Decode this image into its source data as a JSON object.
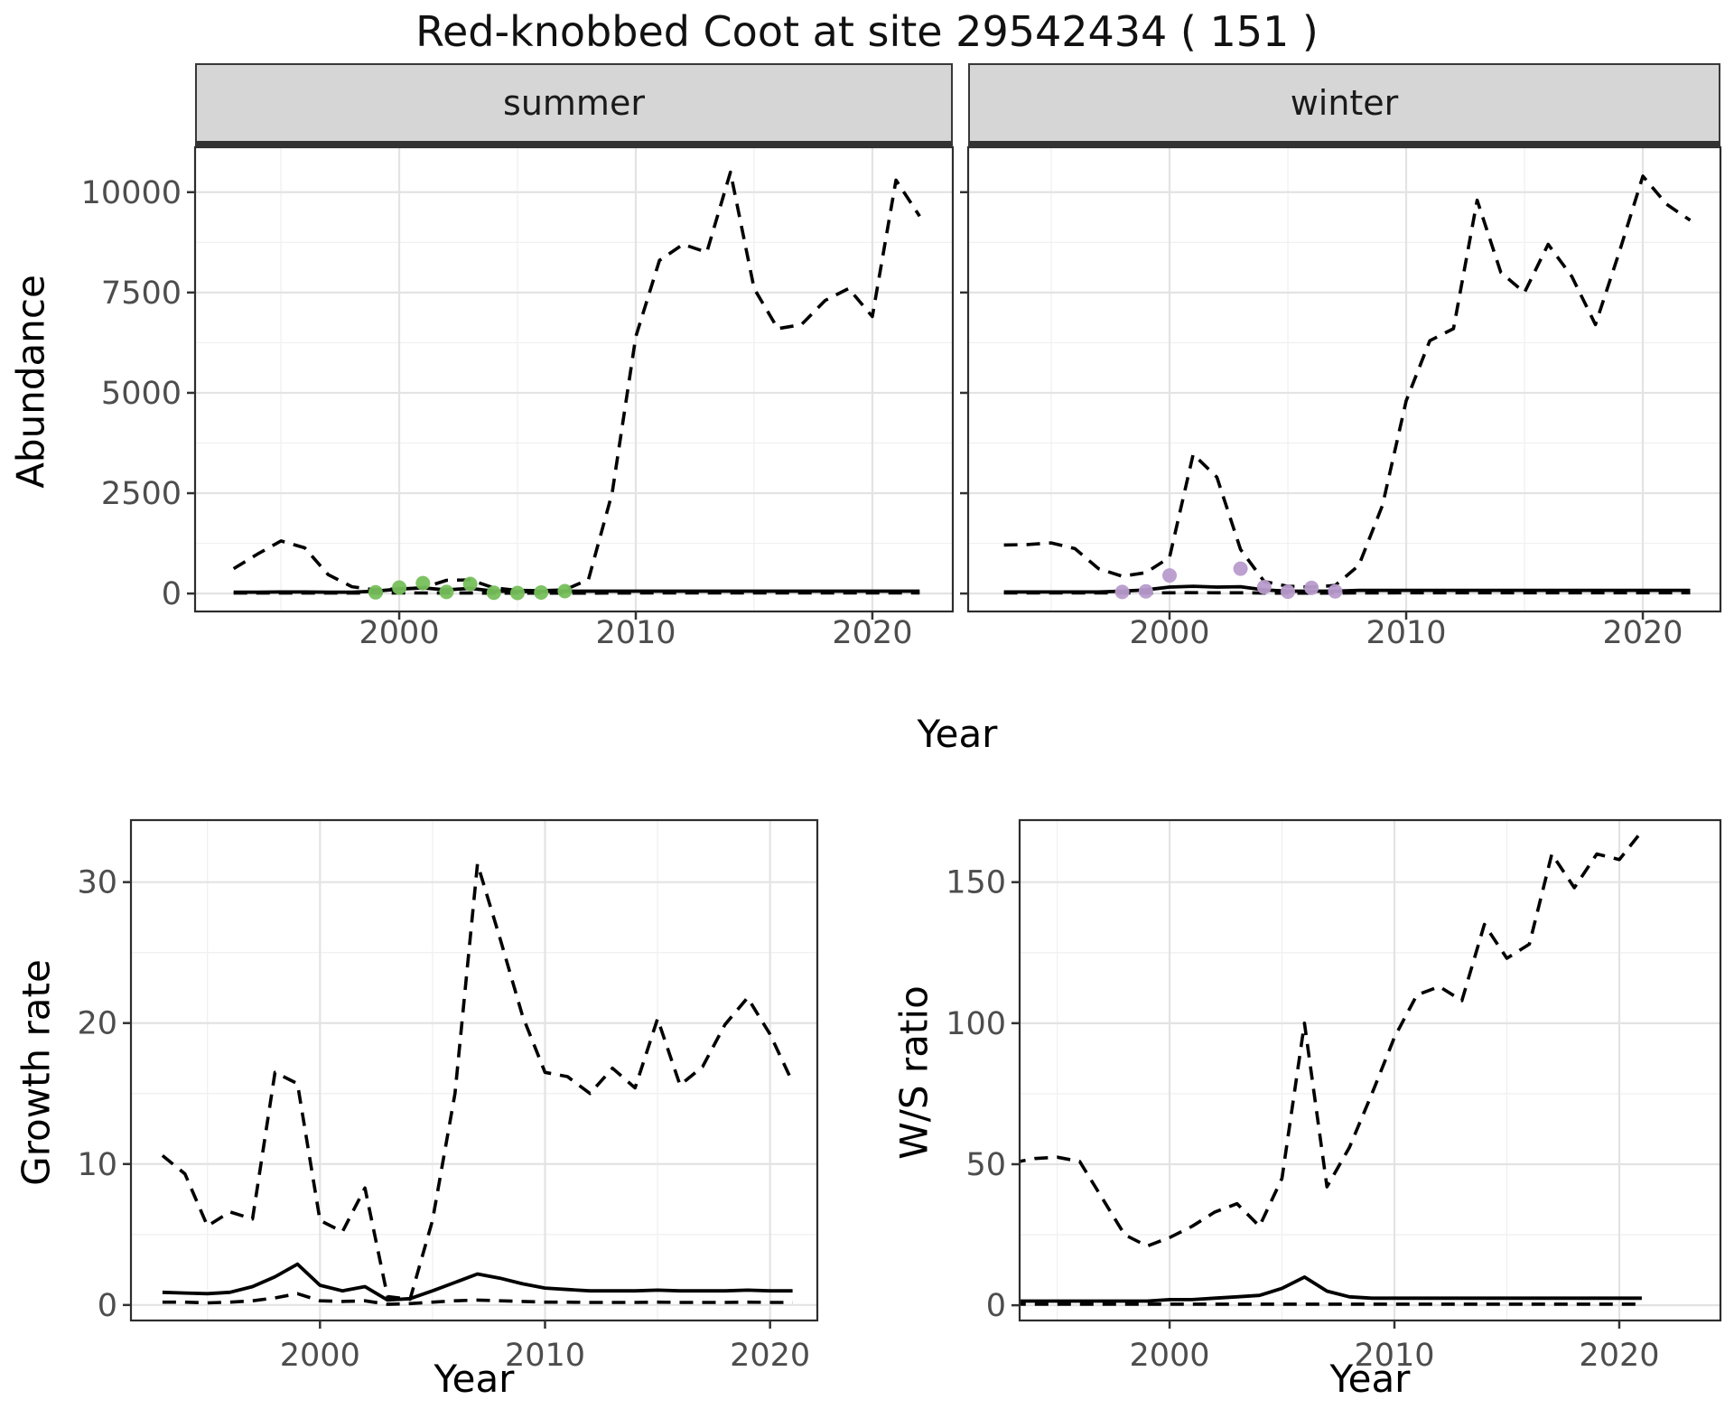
{
  "title": "Red-knobbed Coot at site 29542434 ( 151 )",
  "axis_labels": {
    "x": "Year",
    "y_abundance": "Abundance",
    "y_growth": "Growth rate",
    "y_ws": "W/S ratio"
  },
  "colors": {
    "summer_points": "#76BF5B",
    "winter_points": "#B89BCC",
    "line": "#000000",
    "grid_major": "#E3E3E3",
    "grid_minor": "#F1F1F1",
    "strip_bg": "#D6D6D6",
    "tick_text": "#4D4D4D",
    "panel_border": "#2D2D2D"
  },
  "chart_data": [
    {
      "id": "abundance-summer",
      "type": "line",
      "facet": "summer",
      "xlabel": "Year",
      "ylabel": "Abundance",
      "x": [
        1993,
        1994,
        1995,
        1996,
        1997,
        1998,
        1999,
        2000,
        2001,
        2002,
        2003,
        2004,
        2005,
        2006,
        2007,
        2008,
        2009,
        2010,
        2011,
        2012,
        2013,
        2014,
        2015,
        2016,
        2017,
        2018,
        2019,
        2020,
        2021,
        2022
      ],
      "series": [
        {
          "name": "upper_ci_dashed",
          "style": "dashed",
          "values": [
            620,
            980,
            1310,
            1140,
            470,
            170,
            90,
            120,
            140,
            330,
            340,
            140,
            80,
            70,
            90,
            350,
            2500,
            6400,
            8300,
            8700,
            8500,
            10500,
            7600,
            6600,
            6700,
            7300,
            7600,
            6900,
            10300,
            9400
          ]
        },
        {
          "name": "fitted_solid",
          "style": "solid",
          "values": [
            35,
            35,
            40,
            40,
            35,
            35,
            60,
            110,
            140,
            90,
            130,
            60,
            50,
            50,
            60,
            60,
            60,
            60,
            60,
            60,
            60,
            60,
            60,
            60,
            60,
            60,
            60,
            60,
            60,
            60
          ]
        },
        {
          "name": "lower_ci_dashed",
          "style": "dashed",
          "values": [
            12,
            12,
            12,
            12,
            12,
            12,
            12,
            15,
            15,
            12,
            12,
            10,
            10,
            10,
            10,
            10,
            12,
            15,
            15,
            15,
            15,
            15,
            15,
            15,
            15,
            15,
            15,
            15,
            15,
            15
          ]
        }
      ],
      "points": {
        "name": "observed_summer_counts",
        "color": "#76BF5B",
        "x": [
          1999,
          2000,
          2001,
          2002,
          2003,
          2004,
          2005,
          2006,
          2007
        ],
        "y": [
          30,
          150,
          260,
          40,
          240,
          20,
          15,
          25,
          60
        ]
      },
      "xticks": [
        2000,
        2010,
        2020
      ],
      "yticks": [
        0,
        2500,
        5000,
        7500,
        10000
      ],
      "xlim": [
        1991.37,
        2023.4
      ],
      "ylim": [
        -447,
        11120
      ]
    },
    {
      "id": "abundance-winter",
      "type": "line",
      "facet": "winter",
      "xlabel": "Year",
      "ylabel": "Abundance",
      "x": [
        1993,
        1994,
        1995,
        1996,
        1997,
        1998,
        1999,
        2000,
        2001,
        2002,
        2003,
        2004,
        2005,
        2006,
        2007,
        2008,
        2009,
        2010,
        2011,
        2012,
        2013,
        2014,
        2015,
        2016,
        2017,
        2018,
        2019,
        2020,
        2021,
        2022
      ],
      "series": [
        {
          "name": "upper_ci_dashed",
          "style": "dashed",
          "values": [
            1210,
            1220,
            1260,
            1120,
            620,
            430,
            520,
            900,
            3470,
            2900,
            1100,
            300,
            180,
            160,
            200,
            700,
            2200,
            4800,
            6300,
            6600,
            9800,
            8000,
            7500,
            8700,
            7900,
            6700,
            8500,
            10400,
            9700,
            9300
          ]
        },
        {
          "name": "fitted_solid",
          "style": "solid",
          "values": [
            40,
            40,
            40,
            40,
            40,
            60,
            90,
            160,
            180,
            160,
            170,
            90,
            60,
            60,
            60,
            80,
            80,
            80,
            80,
            80,
            80,
            80,
            80,
            80,
            80,
            80,
            80,
            80,
            80,
            80
          ]
        },
        {
          "name": "lower_ci_dashed",
          "style": "dashed",
          "values": [
            15,
            15,
            15,
            15,
            15,
            15,
            15,
            18,
            20,
            18,
            18,
            12,
            10,
            10,
            12,
            15,
            15,
            18,
            18,
            18,
            18,
            18,
            18,
            18,
            18,
            18,
            18,
            18,
            18,
            18
          ]
        }
      ],
      "points": {
        "name": "observed_winter_counts",
        "color": "#B89BCC",
        "x": [
          1998,
          1999,
          2000,
          2003,
          2004,
          2005,
          2006,
          2007
        ],
        "y": [
          40,
          55,
          450,
          620,
          160,
          45,
          140,
          55
        ]
      },
      "xticks": [
        2000,
        2010,
        2020
      ],
      "yticks": [
        0,
        2500,
        5000,
        7500,
        10000
      ],
      "xlim": [
        1991.49,
        2023.28
      ],
      "ylim": [
        -447,
        11120
      ]
    },
    {
      "id": "growth-rate",
      "type": "line",
      "facet": null,
      "xlabel": "Year",
      "ylabel": "Growth rate",
      "x": [
        1993,
        1994,
        1995,
        1996,
        1997,
        1998,
        1999,
        2000,
        2001,
        2002,
        2003,
        2004,
        2005,
        2006,
        2007,
        2008,
        2009,
        2010,
        2011,
        2012,
        2013,
        2014,
        2015,
        2016,
        2017,
        2018,
        2019,
        2020,
        2021
      ],
      "series": [
        {
          "name": "upper_ci_dashed",
          "style": "dashed",
          "values": [
            10.6,
            9.3,
            5.6,
            6.6,
            6.1,
            16.5,
            15.7,
            6.0,
            5.2,
            8.3,
            0.6,
            0.4,
            6.0,
            15.0,
            31.3,
            26.0,
            20.5,
            16.5,
            16.2,
            15.0,
            16.8,
            15.4,
            20.3,
            15.6,
            16.9,
            19.9,
            21.8,
            19.2,
            15.8
          ]
        },
        {
          "name": "fitted_solid",
          "style": "solid",
          "values": [
            0.9,
            0.85,
            0.8,
            0.9,
            1.3,
            2.0,
            2.9,
            1.4,
            1.0,
            1.3,
            0.35,
            0.45,
            1.0,
            1.6,
            2.2,
            1.9,
            1.5,
            1.2,
            1.1,
            1.0,
            1.0,
            1.0,
            1.05,
            1.0,
            1.0,
            1.0,
            1.05,
            1.0,
            1.0
          ]
        },
        {
          "name": "lower_ci_dashed",
          "style": "dashed",
          "values": [
            0.2,
            0.2,
            0.15,
            0.2,
            0.3,
            0.5,
            0.8,
            0.3,
            0.25,
            0.3,
            0.05,
            0.1,
            0.2,
            0.3,
            0.35,
            0.3,
            0.25,
            0.2,
            0.2,
            0.18,
            0.18,
            0.18,
            0.2,
            0.18,
            0.18,
            0.18,
            0.2,
            0.18,
            0.18
          ]
        }
      ],
      "points": null,
      "xticks": [
        2000,
        2010,
        2020
      ],
      "yticks": [
        0,
        10,
        20,
        30
      ],
      "xlim": [
        1991.6,
        2022.1
      ],
      "ylim": [
        -1.1,
        34.4
      ]
    },
    {
      "id": "ws-ratio",
      "type": "line",
      "facet": null,
      "xlabel": "Year",
      "ylabel": "W/S ratio",
      "x": [
        1993,
        1994,
        1995,
        1996,
        1997,
        1998,
        1999,
        2000,
        2001,
        2002,
        2003,
        2004,
        2005,
        2006,
        2007,
        2008,
        2009,
        2010,
        2011,
        2012,
        2013,
        2014,
        2015,
        2016,
        2017,
        2018,
        2019,
        2020,
        2021
      ],
      "series": [
        {
          "name": "upper_ci_dashed",
          "style": "dashed",
          "values": [
            50.5,
            52,
            52.5,
            51,
            38,
            25,
            21,
            24,
            28,
            33,
            36,
            28,
            45,
            100,
            42,
            56,
            75,
            95,
            110,
            113,
            108,
            135,
            123,
            128,
            160,
            148,
            160,
            158,
            168
          ]
        },
        {
          "name": "fitted_solid",
          "style": "solid",
          "values": [
            1.5,
            1.5,
            1.5,
            1.5,
            1.5,
            1.5,
            1.5,
            2,
            2,
            2.5,
            3,
            3.5,
            6,
            10,
            5,
            3,
            2.5,
            2.5,
            2.5,
            2.5,
            2.5,
            2.5,
            2.5,
            2.5,
            2.5,
            2.5,
            2.5,
            2.5,
            2.5
          ]
        },
        {
          "name": "lower_ci_dashed",
          "style": "dashed",
          "values": [
            0.4,
            0.4,
            0.4,
            0.4,
            0.4,
            0.4,
            0.4,
            0.4,
            0.4,
            0.4,
            0.4,
            0.4,
            0.4,
            0.4,
            0.4,
            0.4,
            0.4,
            0.4,
            0.4,
            0.4,
            0.4,
            0.4,
            0.4,
            0.4,
            0.4,
            0.4,
            0.4,
            0.4,
            0.4
          ]
        }
      ],
      "points": null,
      "xticks": [
        2000,
        2010,
        2020
      ],
      "yticks": [
        0,
        50,
        100,
        150
      ],
      "xlim": [
        1993.33,
        2024.5
      ],
      "ylim": [
        -5.4,
        172
      ]
    }
  ]
}
